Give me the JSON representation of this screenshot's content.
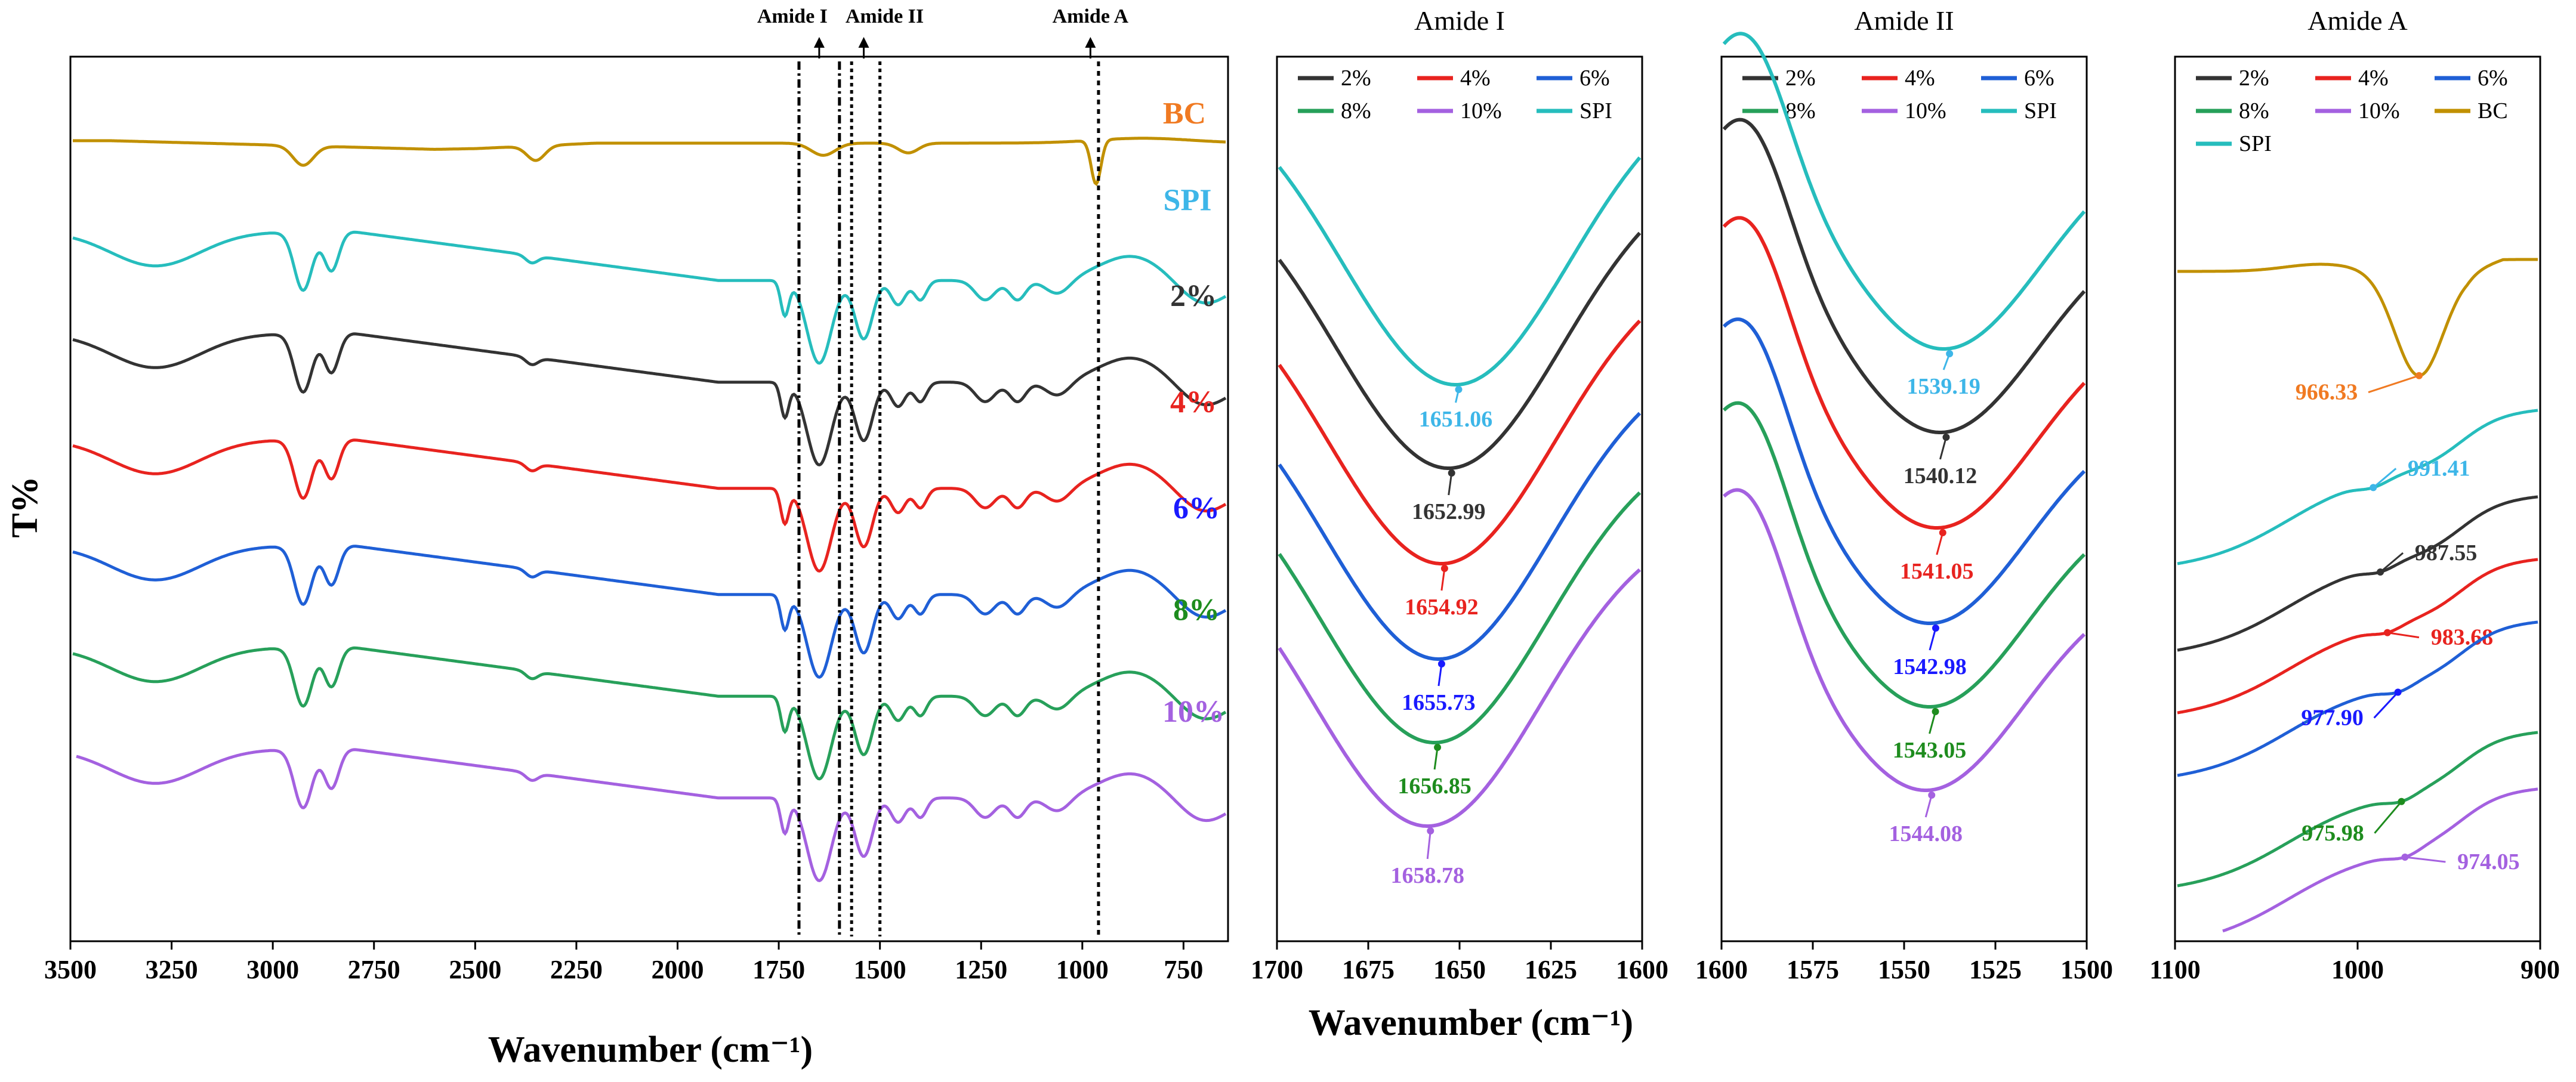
{
  "colors": {
    "2%": "#333333",
    "4%": "#e8231f",
    "6%": "#1f5fd6",
    "8%": "#27a05a",
    "10%": "#a461e0",
    "SPI": "#26bdbd",
    "BC": "#c19000",
    "label_SPI": "#3db6e8",
    "label_BC": "#f07a22",
    "label_8%": "#1e8c1e",
    "label_6%": "#1a1aff"
  },
  "shared": {
    "ylabel": "T%",
    "xlabel": "Wavenumber (cm⁻¹)"
  },
  "chart_data": [
    {
      "id": "full",
      "type": "line",
      "title": "",
      "xlabel": "Wavenumber (cm⁻¹)",
      "ylabel": "T%",
      "xlim": [
        3500,
        640
      ],
      "ticks": [
        "3500",
        "3250",
        "3000",
        "2750",
        "2500",
        "2250",
        "2000",
        "1750",
        "1500",
        "1250",
        "1000",
        "750"
      ],
      "series_labels": [
        "BC",
        "SPI",
        "2%",
        "4%",
        "6%",
        "8%",
        "10%"
      ],
      "band_markers": [
        {
          "label": "Amide I",
          "x": 1650
        },
        {
          "label": "Amide II",
          "x": 1540
        },
        {
          "label": "Amide A",
          "x": 980
        }
      ],
      "series": [
        {
          "name": "BC",
          "offset": 0.905
        },
        {
          "name": "SPI",
          "offset": 0.78
        },
        {
          "name": "2%",
          "offset": 0.665
        },
        {
          "name": "4%",
          "offset": 0.545
        },
        {
          "name": "6%",
          "offset": 0.425
        },
        {
          "name": "8%",
          "offset": 0.31
        },
        {
          "name": "10%",
          "offset": 0.195
        }
      ]
    },
    {
      "id": "amide1",
      "type": "line",
      "title": "Amide I",
      "xlim": [
        1700,
        1600
      ],
      "ticks": [
        "1700",
        "1675",
        "1650",
        "1625",
        "1600"
      ],
      "legend": [
        "2%",
        "4%",
        "6%",
        "8%",
        "10%",
        "SPI"
      ],
      "series": [
        {
          "name": "SPI",
          "min_x": 1651.06,
          "label": "1651.06"
        },
        {
          "name": "2%",
          "min_x": 1652.99,
          "label": "1652.99"
        },
        {
          "name": "4%",
          "min_x": 1654.92,
          "label": "1654.92"
        },
        {
          "name": "6%",
          "min_x": 1655.73,
          "label": "1655.73"
        },
        {
          "name": "8%",
          "min_x": 1656.85,
          "label": "1656.85"
        },
        {
          "name": "10%",
          "min_x": 1658.78,
          "label": "1658.78"
        }
      ]
    },
    {
      "id": "amide2",
      "type": "line",
      "title": "Amide II",
      "xlim": [
        1600,
        1500
      ],
      "ticks": [
        "1600",
        "1575",
        "1550",
        "1525",
        "1500"
      ],
      "legend": [
        "2%",
        "4%",
        "6%",
        "8%",
        "10%",
        "SPI"
      ],
      "series": [
        {
          "name": "SPI",
          "min_x": 1539.19,
          "label": "1539.19"
        },
        {
          "name": "2%",
          "min_x": 1540.12,
          "label": "1540.12"
        },
        {
          "name": "4%",
          "min_x": 1541.05,
          "label": "1541.05"
        },
        {
          "name": "6%",
          "min_x": 1542.98,
          "label": "1542.98"
        },
        {
          "name": "8%",
          "min_x": 1543.05,
          "label": "1543.05"
        },
        {
          "name": "10%",
          "min_x": 1544.08,
          "label": "1544.08"
        }
      ]
    },
    {
      "id": "amideA",
      "type": "line",
      "title": "Amide A",
      "xlim": [
        1100,
        900
      ],
      "ticks": [
        "1100",
        "1000",
        "900"
      ],
      "legend": [
        "2%",
        "4%",
        "6%",
        "8%",
        "10%",
        "BC",
        "SPI"
      ],
      "series": [
        {
          "name": "BC",
          "feature_x": 966.33,
          "label": "966.33"
        },
        {
          "name": "SPI",
          "feature_x": 991.41,
          "label": "991.41"
        },
        {
          "name": "2%",
          "feature_x": 987.55,
          "label": "987.55"
        },
        {
          "name": "4%",
          "feature_x": 983.68,
          "label": "983.68"
        },
        {
          "name": "6%",
          "feature_x": 977.9,
          "label": "977.90"
        },
        {
          "name": "8%",
          "feature_x": 975.98,
          "label": "975.98"
        },
        {
          "name": "10%",
          "feature_x": 974.05,
          "label": "974.05"
        }
      ]
    }
  ]
}
